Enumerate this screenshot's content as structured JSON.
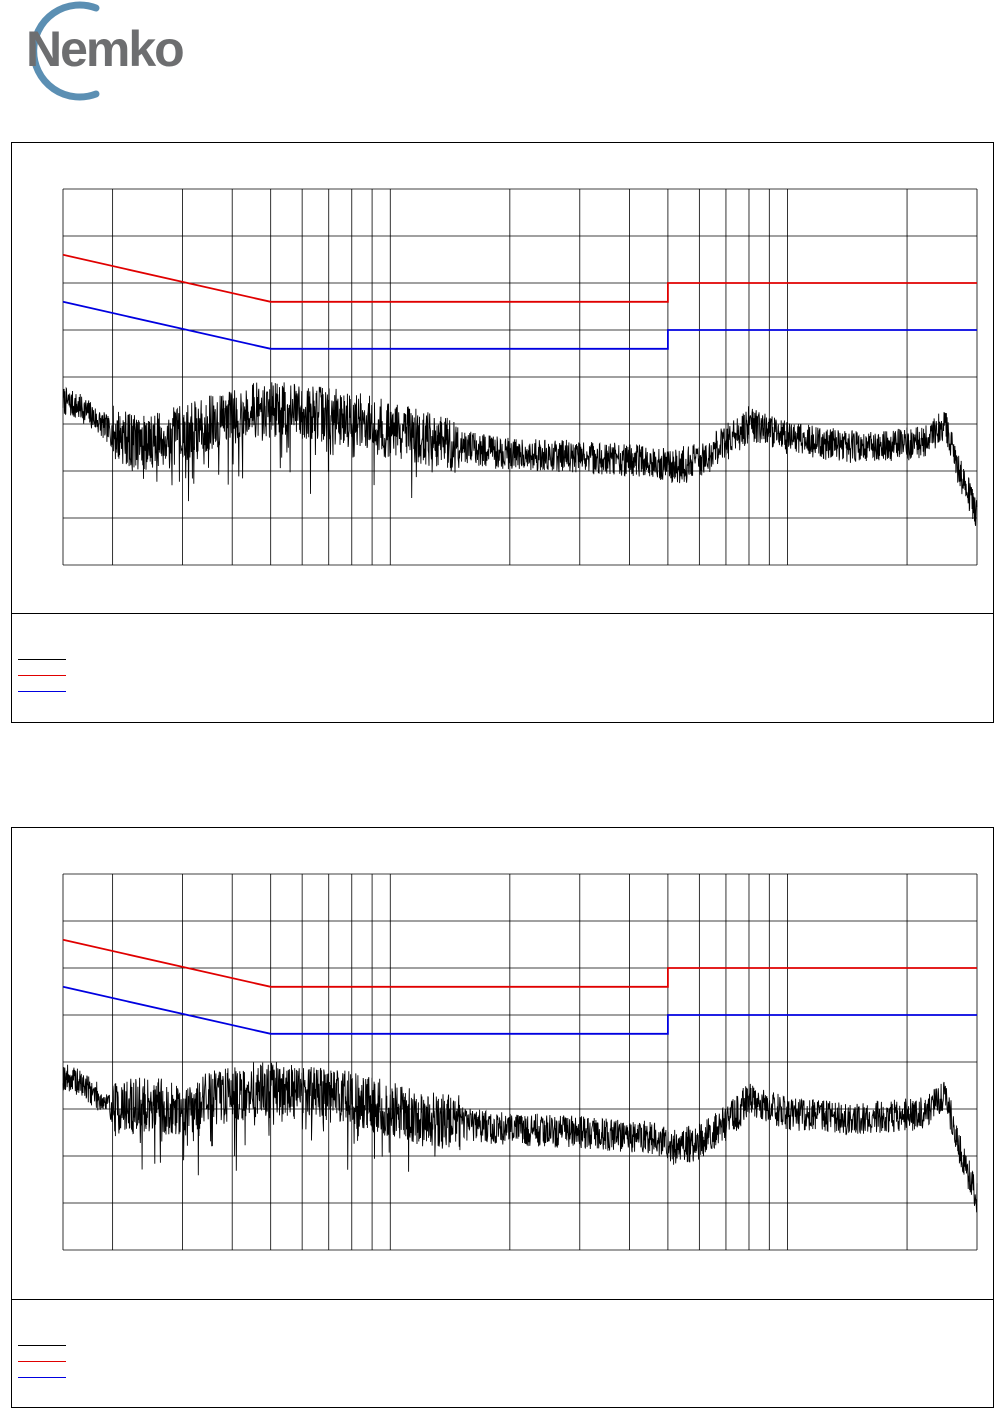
{
  "logo": {
    "text": "Nemko",
    "icon": "nemko-ring-logo",
    "text_color": "#6d6e70",
    "ring_color": "#5b8fb3"
  },
  "colors": {
    "measurement": "#000000",
    "limit_qp": "#e00000",
    "limit_avg": "#0000e0",
    "grid": "#000000"
  },
  "chart_data": [
    {
      "type": "line",
      "x_scale": "log",
      "xlim": [
        0.15,
        30
      ],
      "ylim": [
        0,
        80
      ],
      "y_gridlines": [
        0,
        10,
        20,
        30,
        40,
        50,
        60,
        70,
        80
      ],
      "x_gridlines": [
        0.15,
        0.2,
        0.3,
        0.4,
        0.5,
        0.6,
        0.7,
        0.8,
        0.9,
        1,
        2,
        3,
        4,
        5,
        6,
        7,
        8,
        9,
        10,
        20,
        30
      ],
      "grid": true,
      "title": "",
      "xlabel": "",
      "ylabel": "",
      "series": [
        {
          "role": "limit_qp",
          "points": [
            [
              0.15,
              66
            ],
            [
              0.5,
              56
            ],
            [
              5,
              56
            ],
            [
              5,
              60
            ],
            [
              30,
              60
            ]
          ]
        },
        {
          "role": "limit_avg",
          "points": [
            [
              0.15,
              56
            ],
            [
              0.5,
              46
            ],
            [
              5,
              46
            ],
            [
              5,
              50
            ],
            [
              30,
              50
            ]
          ]
        },
        {
          "role": "measurement",
          "noise_seed": 7,
          "envelope": [
            [
              0.15,
              35
            ],
            [
              0.17,
              33
            ],
            [
              0.2,
              28
            ],
            [
              0.24,
              26
            ],
            [
              0.3,
              28
            ],
            [
              0.35,
              30
            ],
            [
              0.45,
              33
            ],
            [
              0.55,
              33
            ],
            [
              0.7,
              32
            ],
            [
              0.9,
              30
            ],
            [
              1.2,
              27
            ],
            [
              1.8,
              24
            ],
            [
              3,
              23
            ],
            [
              4.5,
              22
            ],
            [
              5.2,
              21
            ],
            [
              6,
              22
            ],
            [
              7,
              26
            ],
            [
              8,
              30
            ],
            [
              10,
              27
            ],
            [
              15,
              25
            ],
            [
              22,
              26
            ],
            [
              25,
              30
            ],
            [
              27,
              20
            ],
            [
              30,
              11
            ]
          ]
        }
      ]
    },
    {
      "type": "line",
      "x_scale": "log",
      "xlim": [
        0.15,
        30
      ],
      "ylim": [
        0,
        80
      ],
      "y_gridlines": [
        0,
        10,
        20,
        30,
        40,
        50,
        60,
        70,
        80
      ],
      "x_gridlines": [
        0.15,
        0.2,
        0.3,
        0.4,
        0.5,
        0.6,
        0.7,
        0.8,
        0.9,
        1,
        2,
        3,
        4,
        5,
        6,
        7,
        8,
        9,
        10,
        20,
        30
      ],
      "grid": true,
      "title": "",
      "xlabel": "",
      "ylabel": "",
      "series": [
        {
          "role": "limit_qp",
          "points": [
            [
              0.15,
              66
            ],
            [
              0.5,
              56
            ],
            [
              5,
              56
            ],
            [
              5,
              60
            ],
            [
              30,
              60
            ]
          ]
        },
        {
          "role": "limit_avg",
          "points": [
            [
              0.15,
              56
            ],
            [
              0.5,
              46
            ],
            [
              5,
              46
            ],
            [
              5,
              50
            ],
            [
              30,
              50
            ]
          ]
        },
        {
          "role": "measurement",
          "noise_seed": 19,
          "envelope": [
            [
              0.15,
              37
            ],
            [
              0.17,
              35
            ],
            [
              0.2,
              30
            ],
            [
              0.24,
              31
            ],
            [
              0.3,
              30
            ],
            [
              0.35,
              32
            ],
            [
              0.45,
              34
            ],
            [
              0.55,
              34
            ],
            [
              0.7,
              33
            ],
            [
              0.9,
              31
            ],
            [
              1.2,
              28
            ],
            [
              1.8,
              26
            ],
            [
              3,
              25
            ],
            [
              4.5,
              24
            ],
            [
              5.2,
              22
            ],
            [
              6,
              23
            ],
            [
              7,
              27
            ],
            [
              8,
              32
            ],
            [
              10,
              29
            ],
            [
              15,
              28
            ],
            [
              22,
              29
            ],
            [
              25,
              33
            ],
            [
              27,
              22
            ],
            [
              30,
              11
            ]
          ]
        }
      ]
    }
  ]
}
